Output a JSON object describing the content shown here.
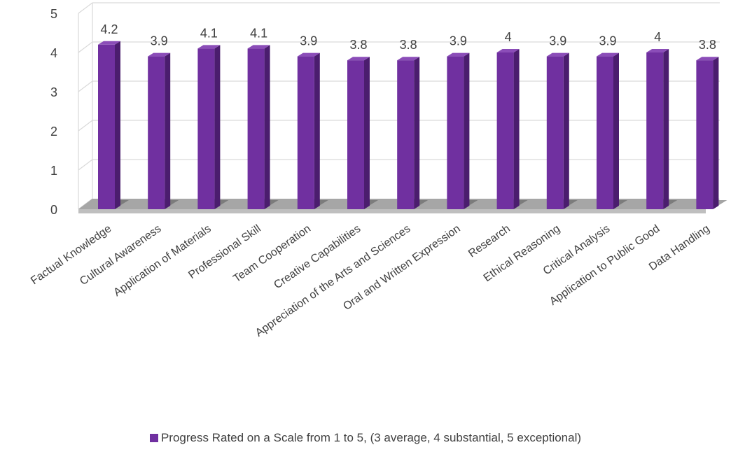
{
  "chart_data": {
    "type": "bar",
    "style": "3d-column",
    "categories": [
      "Factual Knowledge",
      "Cultural Awareness",
      "Application of Materials",
      "Professional Skill",
      "Team Cooperation",
      "Creative Capabilities",
      "Appreciation of the Arts and Sciences",
      "Oral and Written Expression",
      "Research",
      "Ethical Reasoning",
      "Critical Analysis",
      "Application to Public Good",
      "Data Handling"
    ],
    "series": [
      {
        "name": "Progress Rated on a Scale from 1 to 5, (3 average, 4 substantial, 5 exceptional)",
        "values": [
          4.2,
          3.9,
          4.1,
          4.1,
          3.9,
          3.8,
          3.8,
          3.9,
          4,
          3.9,
          3.9,
          4,
          3.8
        ],
        "data_labels": [
          "4.2",
          "3.9",
          "4.1",
          "4.1",
          "3.9",
          "3.8",
          "3.8",
          "3.9",
          "4",
          "3.9",
          "3.9",
          "4",
          "3.8"
        ],
        "color": "#7030A0"
      }
    ],
    "y_ticks": [
      "0",
      "1",
      "2",
      "3",
      "4",
      "5"
    ],
    "ylim": [
      0,
      5
    ],
    "title": "",
    "xlabel": "",
    "ylabel": "",
    "grid": true,
    "legend_position": "bottom",
    "colors": {
      "bar_front": "#7030A0",
      "bar_side": "#4B1D6E",
      "bar_top": "#8B4DB8",
      "gridline": "#D9D9D9",
      "floor": "#A6A6A6",
      "floor_shadow": "#595959",
      "text": "#404040"
    }
  }
}
